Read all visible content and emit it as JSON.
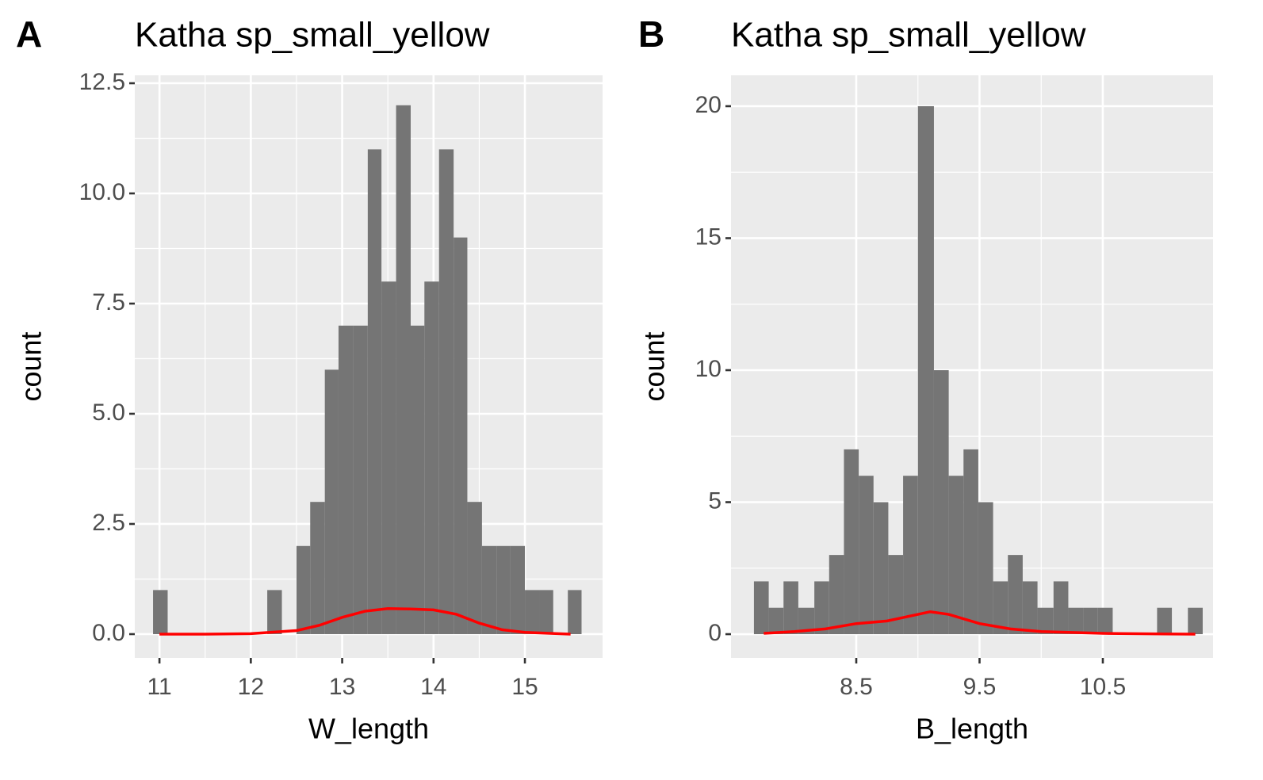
{
  "chart_data": [
    {
      "type": "histogram",
      "panel_label": "A",
      "title": "Katha sp_small_yellow",
      "x_label": "W_length",
      "y_label": "count",
      "bins": [
        10.93,
        11.09,
        11.24,
        11.4,
        11.56,
        11.71,
        11.87,
        12.03,
        12.18,
        12.34,
        12.5,
        12.65,
        12.81,
        12.96,
        13.12,
        13.28,
        13.43,
        13.59,
        13.75,
        13.9,
        14.06,
        14.22,
        14.37,
        14.53,
        14.69,
        14.84,
        15.0,
        15.16,
        15.31,
        15.47,
        15.62
      ],
      "counts": [
        1,
        0,
        0,
        0,
        0,
        0,
        0,
        0,
        1,
        0,
        2,
        3,
        6,
        7,
        7,
        11,
        8,
        12,
        7,
        8,
        11,
        9,
        3,
        2,
        2,
        2,
        1,
        1,
        0,
        1
      ],
      "color": "#757575",
      "density": {
        "color": "#ff0000",
        "x": [
          11,
          11.5,
          12,
          12.5,
          12.75,
          13,
          13.25,
          13.5,
          13.75,
          14,
          14.25,
          14.5,
          14.75,
          15,
          15.25,
          15.5
        ],
        "values": [
          0,
          0,
          0.01,
          0.08,
          0.2,
          0.38,
          0.52,
          0.58,
          0.57,
          0.55,
          0.45,
          0.25,
          0.1,
          0.04,
          0.02,
          0
        ]
      },
      "xlim": [
        10.73,
        15.85
      ],
      "ylim": [
        -0.54,
        12.68
      ],
      "xticks": [
        11,
        12,
        13,
        14,
        15
      ],
      "yticks": [
        {
          "value": 0,
          "label": "0.0"
        },
        2.5,
        {
          "value": 5,
          "label": "5.0"
        },
        7.5,
        {
          "value": 10,
          "label": "10.0"
        },
        12.5
      ],
      "grid": true
    },
    {
      "type": "histogram",
      "panel_label": "B",
      "title": "Katha sp_small_yellow",
      "x_label": "B_length",
      "y_label": "count",
      "bins": [
        7.67,
        7.79,
        7.91,
        8.03,
        8.16,
        8.28,
        8.4,
        8.52,
        8.64,
        8.76,
        8.88,
        9.0,
        9.13,
        9.25,
        9.37,
        9.49,
        9.61,
        9.73,
        9.85,
        9.97,
        10.1,
        10.22,
        10.34,
        10.46,
        10.58,
        10.7,
        10.82,
        10.94,
        11.06,
        11.19,
        11.31
      ],
      "counts": [
        2,
        1,
        2,
        1,
        2,
        3,
        7,
        6,
        5,
        3,
        6,
        20,
        10,
        6,
        7,
        5,
        2,
        3,
        2,
        1,
        2,
        1,
        1,
        1,
        0,
        0,
        0,
        1,
        0,
        1
      ],
      "color": "#757575",
      "density": {
        "color": "#ff0000",
        "x": [
          7.75,
          8,
          8.25,
          8.5,
          8.75,
          9,
          9.1,
          9.25,
          9.5,
          9.75,
          10,
          10.5,
          11,
          11.25
        ],
        "values": [
          0.03,
          0.1,
          0.2,
          0.4,
          0.5,
          0.75,
          0.85,
          0.75,
          0.4,
          0.2,
          0.1,
          0.03,
          0.01,
          0
        ]
      },
      "xlim": [
        7.484,
        11.394
      ],
      "ylim": [
        -0.9,
        21.17
      ],
      "xticks": [
        8.5,
        9.5,
        10.5
      ],
      "yticks": [
        0,
        5,
        10,
        15,
        20
      ],
      "grid": true
    }
  ]
}
